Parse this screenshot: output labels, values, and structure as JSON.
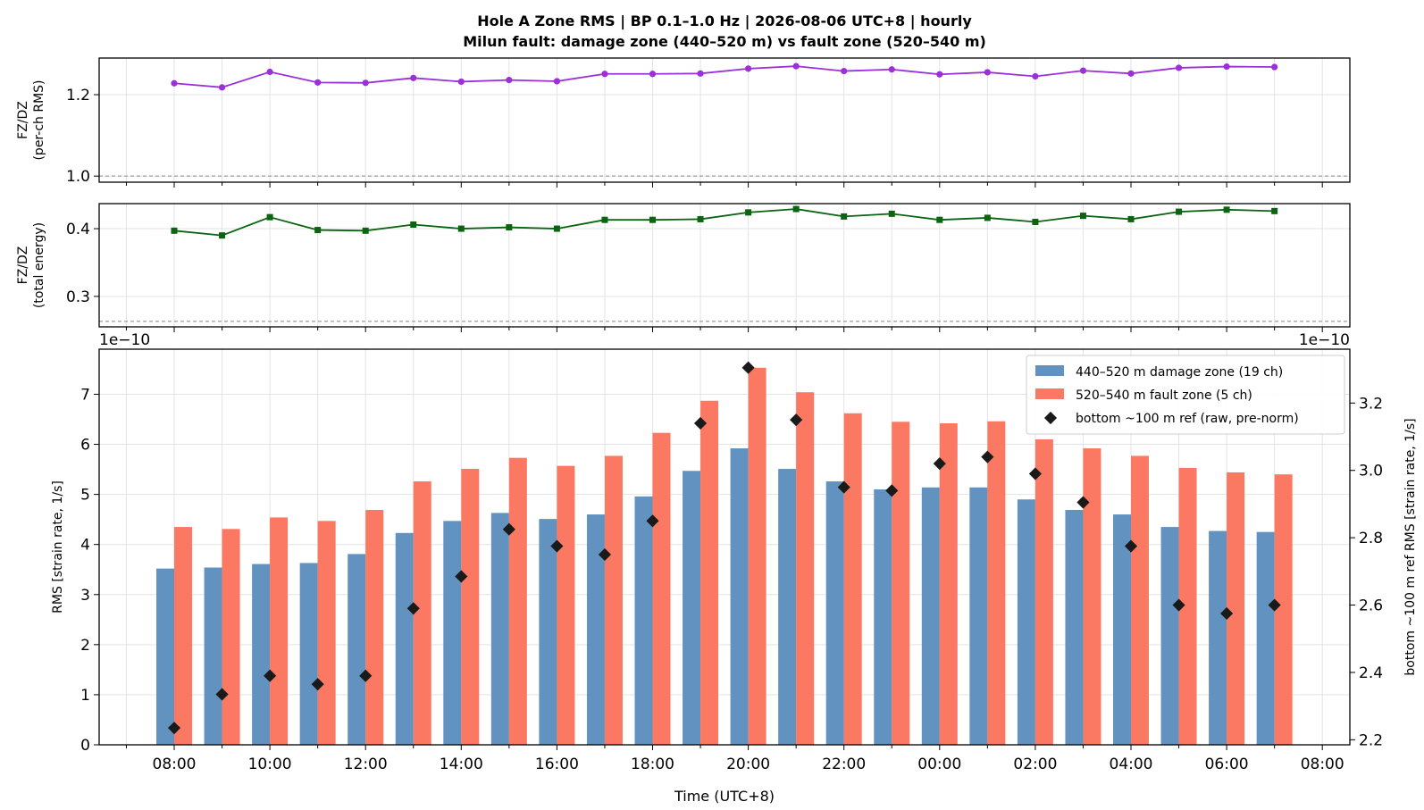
{
  "chart_data": {
    "title_line1": "Hole A Zone RMS  |  BP 0.1–1.0 Hz  |  2026-08-06 UTC+8  |  hourly",
    "title_line2": "Milun fault: damage zone (440–520 m) vs fault zone (520–540 m)",
    "x_labels": [
      "08:00",
      "09:00",
      "10:00",
      "11:00",
      "12:00",
      "13:00",
      "14:00",
      "15:00",
      "16:00",
      "17:00",
      "18:00",
      "19:00",
      "20:00",
      "21:00",
      "22:00",
      "23:00",
      "00:00",
      "01:00",
      "02:00",
      "03:00",
      "04:00",
      "05:00",
      "06:00",
      "07:00"
    ],
    "x_major_ticks": [
      "08:00",
      "10:00",
      "12:00",
      "14:00",
      "16:00",
      "18:00",
      "20:00",
      "22:00",
      "00:00",
      "02:00",
      "04:00",
      "06:00",
      "08:00"
    ],
    "xlabel": "Time (UTC+8)",
    "panels": [
      {
        "type": "line",
        "ylabel_line1": "FZ/DZ",
        "ylabel_line2": "(per-ch RMS)",
        "ylim": [
          0.985,
          1.29
        ],
        "yticks": [
          1.0,
          1.2
        ],
        "ytick_labels": [
          "1.0",
          "1.2"
        ],
        "ref_line": 1.0,
        "color": "#9b30d9",
        "marker": "circle",
        "values": [
          1.228,
          1.218,
          1.256,
          1.23,
          1.229,
          1.241,
          1.232,
          1.236,
          1.233,
          1.251,
          1.251,
          1.252,
          1.264,
          1.27,
          1.258,
          1.262,
          1.25,
          1.255,
          1.245,
          1.259,
          1.252,
          1.266,
          1.269,
          1.268
        ]
      },
      {
        "type": "line",
        "ylabel_line1": "FZ/DZ",
        "ylabel_line2": "(total energy)",
        "ylim": [
          0.255,
          0.437
        ],
        "yticks": [
          0.3,
          0.4
        ],
        "ytick_labels": [
          "0.3",
          "0.4"
        ],
        "ref_line": 0.263,
        "color": "#0a6410",
        "marker": "square",
        "values": [
          0.397,
          0.39,
          0.417,
          0.398,
          0.397,
          0.406,
          0.4,
          0.402,
          0.4,
          0.413,
          0.413,
          0.414,
          0.424,
          0.429,
          0.418,
          0.422,
          0.413,
          0.416,
          0.41,
          0.419,
          0.414,
          0.425,
          0.428,
          0.426
        ]
      },
      {
        "type": "bar",
        "ylabel": "RMS  [strain rate, 1/s]",
        "ylim": [
          0,
          7.9
        ],
        "yticks": [
          0,
          1,
          2,
          3,
          4,
          5,
          6,
          7
        ],
        "offset_left": "1e−10",
        "offset_right": "1e−10",
        "series": [
          {
            "name": "440–520 m  damage zone (19 ch)",
            "color": "#6293c0",
            "values": [
              3.52,
              3.54,
              3.61,
              3.63,
              3.81,
              4.23,
              4.47,
              4.63,
              4.51,
              4.6,
              4.96,
              5.47,
              5.92,
              5.51,
              5.26,
              5.1,
              5.14,
              5.14,
              4.9,
              4.69,
              4.6,
              4.35,
              4.27,
              4.25
            ]
          },
          {
            "name": "520–540 m  fault zone (5 ch)",
            "color": "#fb7863",
            "values": [
              4.35,
              4.31,
              4.54,
              4.47,
              4.69,
              5.26,
              5.51,
              5.73,
              5.57,
              5.77,
              6.23,
              6.87,
              7.53,
              7.04,
              6.62,
              6.45,
              6.42,
              6.46,
              6.1,
              5.92,
              5.77,
              5.53,
              5.44,
              5.4
            ]
          }
        ],
        "right_axis": {
          "ylabel": "bottom ~100 m ref RMS  [strain rate, 1/s]",
          "ylim": [
            2.185,
            3.36
          ],
          "yticks": [
            2.2,
            2.4,
            2.6,
            2.8,
            3.0,
            3.2
          ],
          "ytick_labels": [
            "2.2",
            "2.4",
            "2.6",
            "2.8",
            "3.0",
            "3.2"
          ],
          "series_name": "bottom ~100 m ref (raw, pre-norm)",
          "color": "#1a1a1a",
          "values": [
            2.235,
            2.335,
            2.39,
            2.365,
            2.39,
            2.59,
            2.685,
            2.825,
            2.775,
            2.75,
            2.85,
            3.14,
            3.305,
            3.15,
            2.95,
            2.94,
            3.02,
            3.04,
            2.99,
            2.905,
            2.775,
            2.6,
            2.575,
            2.6
          ]
        }
      }
    ]
  }
}
